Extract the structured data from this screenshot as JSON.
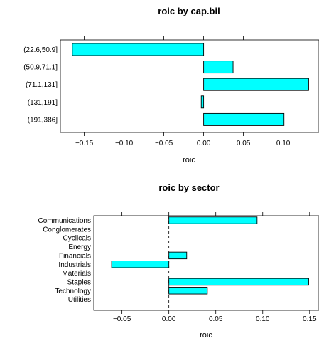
{
  "chart_data": [
    {
      "type": "bar",
      "orientation": "horizontal",
      "title": "roic by cap.bil",
      "xlabel": "roic",
      "ylabel": "",
      "categories": [
        "(22.6,50.9]",
        "(50.9,71.1]",
        "(71.1,131]",
        "(131,191]",
        "(191,386]"
      ],
      "values": [
        -0.165,
        0.037,
        0.132,
        -0.003,
        0.101
      ],
      "xlim": [
        -0.18,
        0.145
      ],
      "xticks": [
        -0.15,
        -0.1,
        -0.05,
        0.0,
        0.05,
        0.1
      ],
      "xtick_labels": [
        "−0.15",
        "−0.10",
        "−0.05",
        "0.00",
        "0.05",
        "0.10"
      ],
      "bar_fill": "#00ffff",
      "grid": false
    },
    {
      "type": "bar",
      "orientation": "horizontal",
      "title": "roic by sector",
      "xlabel": "roic",
      "ylabel": "",
      "categories": [
        "Communications",
        "Conglomerates",
        "Cyclicals",
        "Energy",
        "Financials",
        "Industrials",
        "Materials",
        "Staples",
        "Technology",
        "Utilities"
      ],
      "values": [
        0.094,
        0.0,
        0.0,
        0.0,
        0.019,
        -0.061,
        0.0,
        0.149,
        0.041,
        0.0
      ],
      "xlim": [
        -0.08,
        0.16
      ],
      "xticks": [
        -0.05,
        0.0,
        0.05,
        0.1,
        0.15
      ],
      "xtick_labels": [
        "−0.05",
        "0.00",
        "0.05",
        "0.10",
        "0.15"
      ],
      "reference_line": 0,
      "bar_fill": "#00ffff",
      "grid": false
    }
  ]
}
